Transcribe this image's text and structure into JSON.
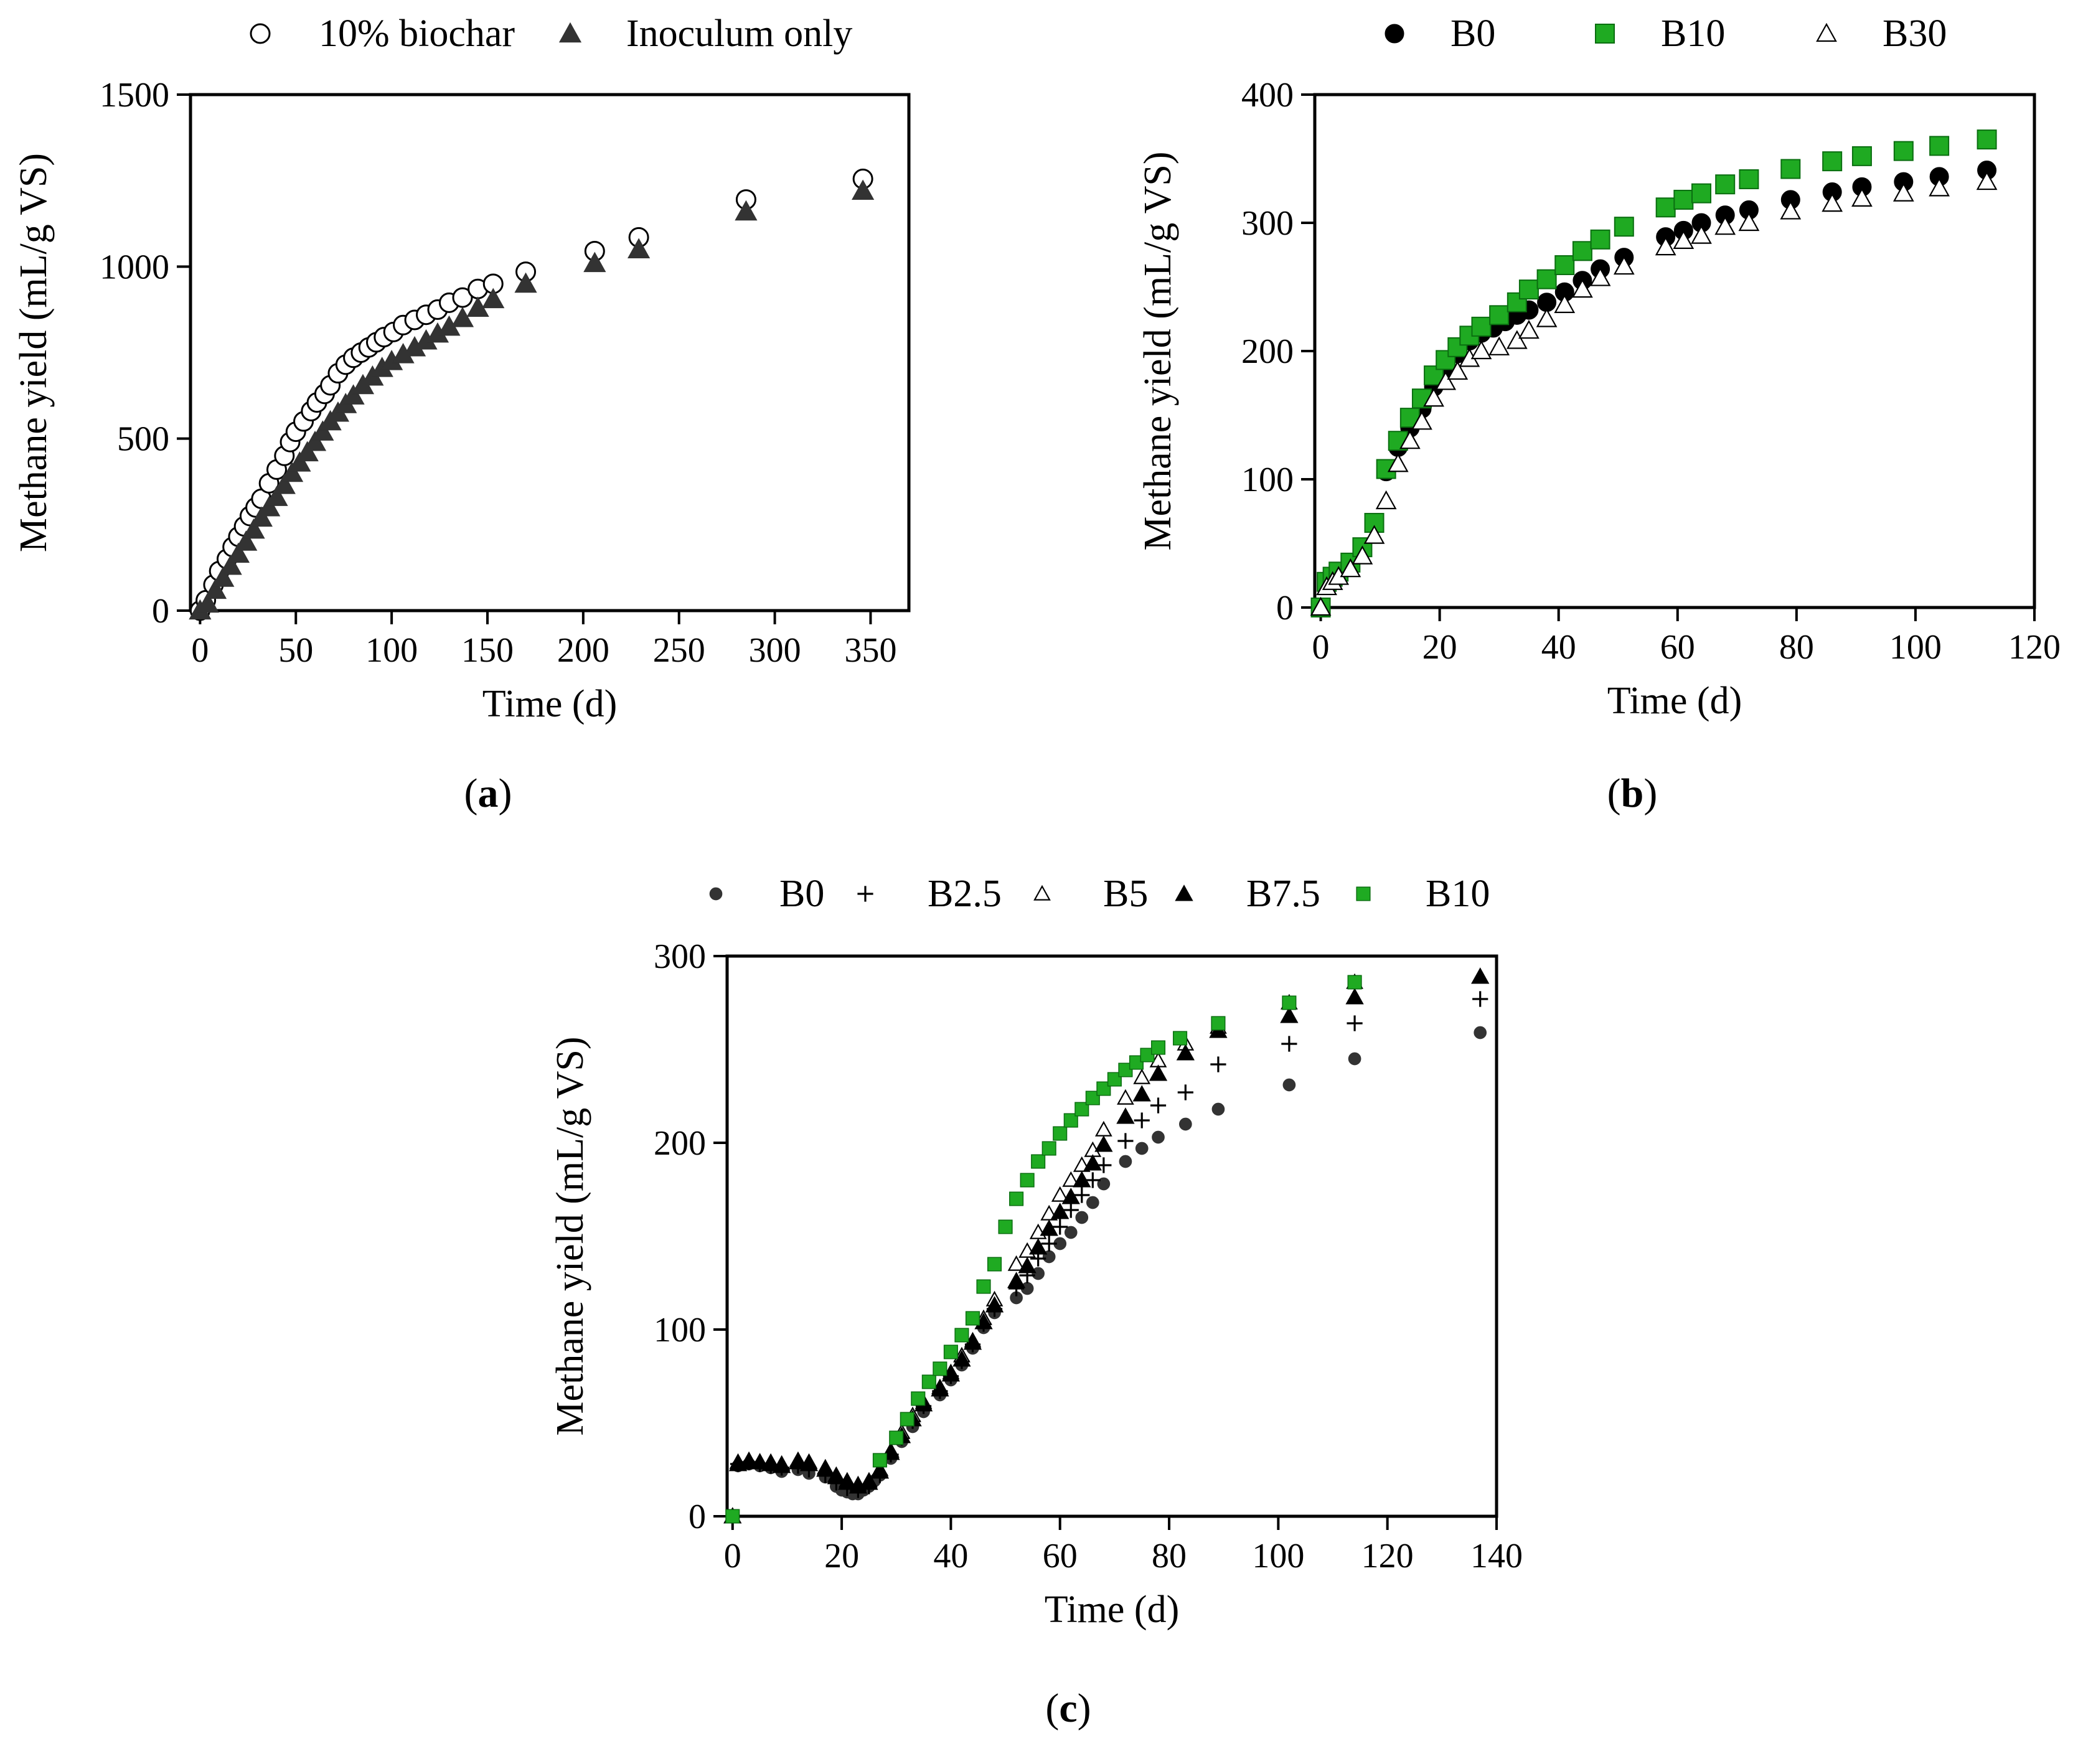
{
  "chart_data": [
    {
      "id": "a",
      "type": "scatter",
      "panel_label_prefix": "(",
      "panel_label_letter": "a",
      "panel_label_suffix": ")",
      "xlabel": "Time (d)",
      "ylabel": "Methane yield (mL/g  VS)",
      "xlim": [
        -5,
        370
      ],
      "ylim": [
        0,
        1500
      ],
      "xticks": [
        0,
        50,
        100,
        150,
        200,
        250,
        300,
        350
      ],
      "yticks": [
        0,
        500,
        1000,
        1500
      ],
      "xtick_labels": [
        "0",
        "50",
        "100",
        "150",
        "200",
        "250",
        "300",
        "350"
      ],
      "ytick_labels": [
        "0",
        "500",
        "1000",
        "1500"
      ],
      "grid": false,
      "legend_position": "top-center",
      "series": [
        {
          "name": "10% biochar",
          "marker": "circle-open",
          "color": "#000000",
          "x": [
            0,
            3,
            7,
            10,
            14,
            17,
            20,
            23,
            26,
            29,
            32,
            36,
            40,
            44,
            47,
            50,
            54,
            58,
            61,
            65,
            68,
            72,
            76,
            80,
            84,
            88,
            92,
            96,
            101,
            106,
            112,
            118,
            124,
            130,
            137,
            145,
            153,
            170,
            206,
            229,
            285,
            346
          ],
          "y": [
            0,
            30,
            75,
            115,
            150,
            185,
            215,
            245,
            275,
            300,
            325,
            370,
            410,
            450,
            490,
            520,
            550,
            580,
            605,
            630,
            655,
            690,
            715,
            735,
            750,
            765,
            780,
            795,
            810,
            830,
            845,
            860,
            875,
            895,
            910,
            935,
            950,
            985,
            1045,
            1085,
            1195,
            1255
          ]
        },
        {
          "name": "Inoculum only",
          "marker": "triangle-filled",
          "color": "#333333",
          "x": [
            0,
            4,
            8,
            12,
            16,
            20,
            24,
            28,
            32,
            36,
            40,
            44,
            48,
            52,
            56,
            60,
            64,
            68,
            72,
            76,
            80,
            85,
            90,
            95,
            100,
            106,
            112,
            118,
            124,
            130,
            137,
            145,
            153,
            170,
            206,
            229,
            285,
            346
          ],
          "y": [
            0,
            20,
            60,
            95,
            130,
            165,
            200,
            235,
            270,
            300,
            330,
            365,
            400,
            430,
            460,
            490,
            520,
            550,
            575,
            600,
            625,
            655,
            680,
            705,
            725,
            745,
            765,
            785,
            805,
            825,
            850,
            880,
            905,
            950,
            1010,
            1050,
            1160,
            1220
          ]
        }
      ]
    },
    {
      "id": "b",
      "type": "scatter",
      "panel_label_prefix": "(",
      "panel_label_letter": "b",
      "panel_label_suffix": ")",
      "xlabel": "Time (d)",
      "ylabel": "Methane yield (mL/g  VS)",
      "xlim": [
        -1,
        120
      ],
      "ylim": [
        0,
        400
      ],
      "xticks": [
        0,
        20,
        40,
        60,
        80,
        100,
        120
      ],
      "yticks": [
        0,
        100,
        200,
        300,
        400
      ],
      "xtick_labels": [
        "0",
        "20",
        "40",
        "60",
        "80",
        "100",
        "120"
      ],
      "ytick_labels": [
        "0",
        "100",
        "200",
        "300",
        "400"
      ],
      "grid": false,
      "legend_position": "top-center",
      "series": [
        {
          "name": "B0",
          "marker": "circle-filled",
          "color": "#000000",
          "x": [
            0,
            1,
            2,
            3,
            5,
            7,
            9,
            11,
            13,
            15,
            17,
            19,
            21,
            23,
            25,
            27,
            29,
            31,
            33,
            35,
            38,
            41,
            44,
            47,
            51,
            58,
            61,
            64,
            68,
            72,
            79,
            86,
            91,
            98,
            104,
            112
          ],
          "y": [
            0,
            18,
            22,
            26,
            33,
            46,
            65,
            106,
            125,
            140,
            155,
            172,
            186,
            198,
            208,
            214,
            218,
            223,
            228,
            232,
            238,
            246,
            255,
            264,
            273,
            289,
            294,
            300,
            306,
            310,
            318,
            324,
            328,
            332,
            336,
            341
          ]
        },
        {
          "name": "B10",
          "marker": "square-filled",
          "color": "#1faa22",
          "x": [
            0,
            1,
            2,
            3,
            5,
            7,
            9,
            11,
            13,
            15,
            17,
            19,
            21,
            23,
            25,
            27,
            30,
            33,
            35,
            38,
            41,
            44,
            47,
            51,
            58,
            61,
            64,
            68,
            72,
            79,
            86,
            91,
            98,
            104,
            112
          ],
          "y": [
            0,
            20,
            24,
            28,
            35,
            47,
            66,
            108,
            130,
            148,
            163,
            181,
            193,
            203,
            212,
            219,
            228,
            238,
            248,
            256,
            267,
            278,
            287,
            297,
            312,
            318,
            323,
            330,
            334,
            342,
            348,
            352,
            356,
            360,
            365
          ]
        },
        {
          "name": "B30",
          "marker": "triangle-open",
          "color": "#000000",
          "x": [
            0,
            1,
            2,
            3,
            5,
            7,
            9,
            11,
            13,
            15,
            17,
            19,
            21,
            23,
            25,
            27,
            30,
            33,
            35,
            38,
            41,
            44,
            47,
            51,
            58,
            61,
            64,
            68,
            72,
            79,
            86,
            91,
            98,
            104,
            112
          ],
          "y": [
            0,
            16,
            20,
            24,
            30,
            40,
            56,
            83,
            112,
            130,
            145,
            163,
            176,
            184,
            194,
            200,
            203,
            208,
            216,
            225,
            236,
            248,
            257,
            266,
            281,
            286,
            290,
            297,
            300,
            309,
            315,
            319,
            323,
            327,
            332
          ]
        }
      ]
    },
    {
      "id": "c",
      "type": "scatter",
      "panel_label_prefix": "(",
      "panel_label_letter": "c",
      "panel_label_suffix": ")",
      "xlabel": "Time (d)",
      "ylabel": "Methane yield (mL/g  VS)",
      "xlim": [
        -1,
        140
      ],
      "ylim": [
        0,
        300
      ],
      "xticks": [
        0,
        20,
        40,
        60,
        80,
        100,
        120,
        140
      ],
      "yticks": [
        0,
        100,
        200,
        300
      ],
      "xtick_labels": [
        "0",
        "20",
        "40",
        "60",
        "80",
        "100",
        "120",
        "140"
      ],
      "ytick_labels": [
        "0",
        "100",
        "200",
        "300"
      ],
      "grid": false,
      "legend_position": "top-center",
      "series": [
        {
          "name": "B0",
          "marker": "circle-small",
          "color": "#333333",
          "x": [
            0,
            1,
            3,
            5,
            7,
            9,
            12,
            14,
            17,
            19,
            20,
            21,
            22,
            23,
            24,
            25,
            26,
            27,
            29,
            31,
            33,
            35,
            38,
            40,
            42,
            44,
            46,
            48,
            52,
            54,
            56,
            58,
            60,
            62,
            64,
            66,
            68,
            72,
            75,
            78,
            83,
            89,
            102,
            114,
            137
          ],
          "y": [
            0,
            27,
            28,
            27,
            26,
            24,
            25,
            23,
            21,
            16,
            14,
            13,
            12,
            12,
            14,
            16,
            19,
            22,
            31,
            40,
            48,
            56,
            65,
            73,
            81,
            90,
            101,
            109,
            117,
            122,
            130,
            139,
            146,
            152,
            160,
            168,
            178,
            190,
            197,
            203,
            210,
            218,
            231,
            245,
            259
          ]
        },
        {
          "name": "B2.5",
          "marker": "plus",
          "color": "#000000",
          "x": [
            0,
            1,
            3,
            5,
            7,
            9,
            12,
            14,
            17,
            19,
            21,
            23,
            25,
            27,
            29,
            31,
            33,
            35,
            38,
            40,
            42,
            44,
            46,
            48,
            52,
            54,
            56,
            58,
            60,
            62,
            64,
            66,
            68,
            72,
            75,
            78,
            83,
            89,
            102,
            114,
            137
          ],
          "y": [
            0,
            28,
            29,
            28,
            27,
            26,
            27,
            25,
            22,
            18,
            15,
            14,
            16,
            22,
            33,
            42,
            51,
            59,
            67,
            75,
            83,
            92,
            103,
            111,
            122,
            129,
            138,
            146,
            155,
            164,
            172,
            180,
            188,
            201,
            212,
            220,
            227,
            242,
            253,
            264,
            277
          ]
        },
        {
          "name": "B5",
          "marker": "triangle-open",
          "color": "#000000",
          "x": [
            0,
            1,
            3,
            5,
            7,
            9,
            12,
            14,
            17,
            19,
            21,
            23,
            25,
            27,
            29,
            31,
            33,
            35,
            38,
            40,
            42,
            44,
            46,
            48,
            52,
            54,
            56,
            58,
            60,
            62,
            64,
            66,
            68,
            72,
            75,
            78,
            83,
            89,
            102,
            114
          ],
          "y": [
            0,
            29,
            30,
            29,
            29,
            28,
            30,
            29,
            26,
            22,
            19,
            17,
            19,
            25,
            35,
            45,
            54,
            61,
            69,
            77,
            86,
            94,
            106,
            116,
            135,
            142,
            152,
            162,
            172,
            180,
            188,
            196,
            207,
            224,
            235,
            244,
            253,
            262,
            275,
            286
          ]
        },
        {
          "name": "B7.5",
          "marker": "triangle-filled",
          "color": "#000000",
          "x": [
            0,
            1,
            3,
            5,
            7,
            9,
            12,
            14,
            17,
            19,
            21,
            23,
            25,
            27,
            29,
            31,
            33,
            35,
            38,
            40,
            42,
            44,
            46,
            48,
            52,
            54,
            56,
            58,
            60,
            62,
            64,
            66,
            68,
            72,
            75,
            78,
            83,
            89,
            102,
            114,
            137
          ],
          "y": [
            0,
            28,
            29,
            29,
            28,
            27,
            29,
            28,
            25,
            21,
            18,
            16,
            18,
            24,
            34,
            43,
            52,
            60,
            68,
            76,
            84,
            93,
            104,
            113,
            126,
            134,
            144,
            154,
            163,
            171,
            180,
            189,
            199,
            214,
            226,
            237,
            248,
            260,
            268,
            278,
            289
          ]
        },
        {
          "name": "B10",
          "marker": "square-small",
          "color": "#1faa22",
          "x": [
            0,
            27,
            30,
            32,
            34,
            36,
            38,
            40,
            42,
            44,
            46,
            48,
            50,
            52,
            54,
            56,
            58,
            60,
            62,
            64,
            66,
            68,
            70,
            72,
            74,
            76,
            78,
            82,
            89,
            102,
            114
          ],
          "y": [
            0,
            30,
            42,
            52,
            63,
            72,
            79,
            88,
            97,
            106,
            123,
            135,
            155,
            170,
            180,
            190,
            197,
            205,
            212,
            218,
            224,
            229,
            234,
            239,
            243,
            247,
            251,
            256,
            264,
            275,
            286
          ]
        }
      ]
    }
  ]
}
